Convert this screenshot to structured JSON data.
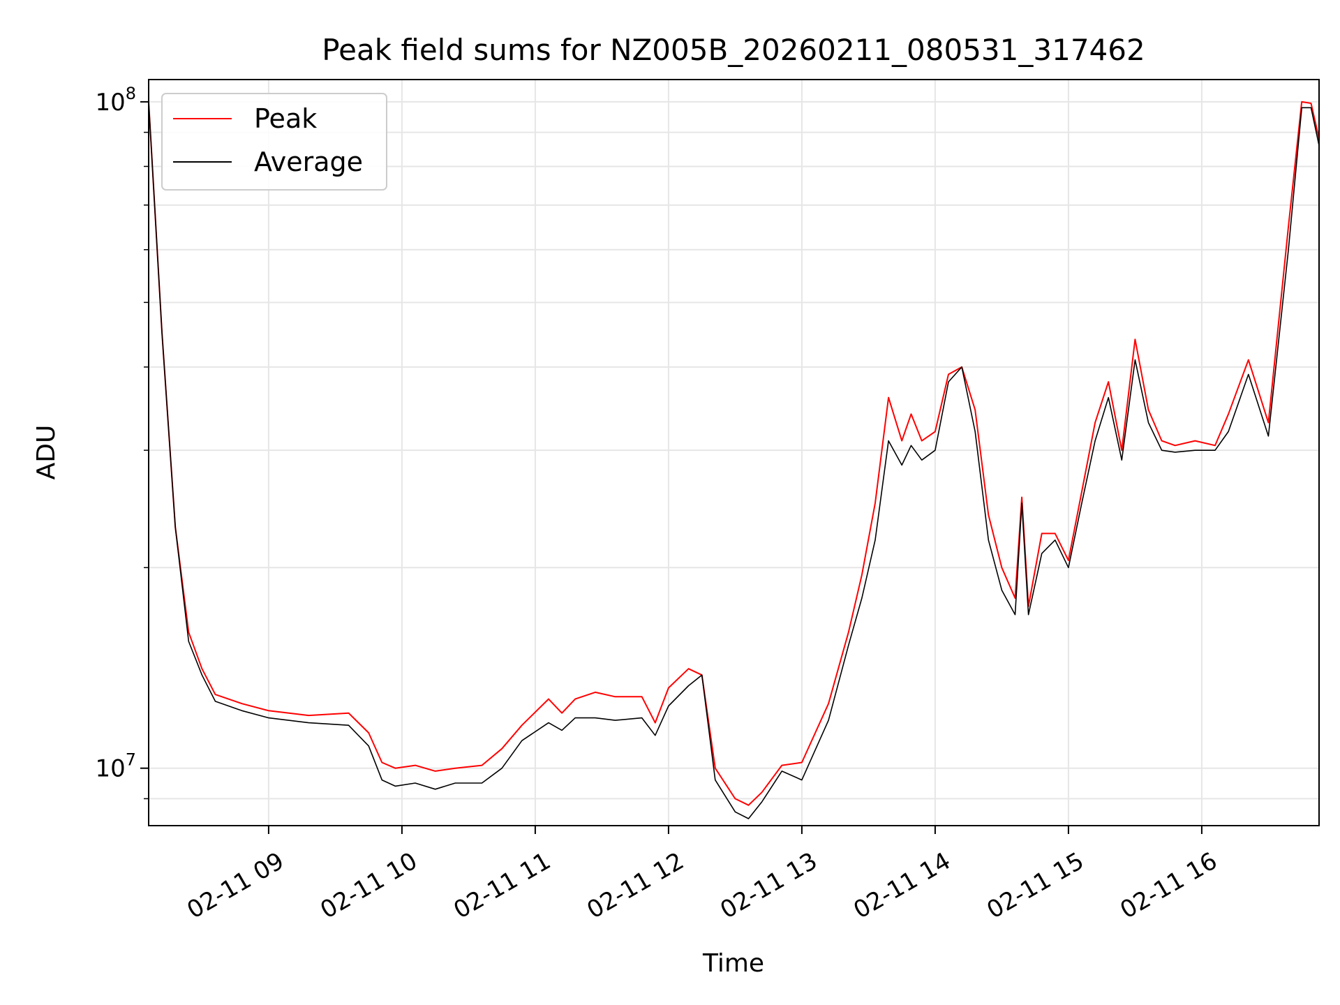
{
  "chart_data": {
    "type": "line",
    "title": "Peak field sums for NZ005B_20260211_080531_317462",
    "xlabel": "Time",
    "ylabel": "ADU",
    "yscale": "log",
    "ylim": [
      8200000,
      108000000
    ],
    "xlim_hours": [
      8.1,
      16.88
    ],
    "grid": true,
    "legend_position": "top-left",
    "x_ticks": [
      {
        "hour": 9,
        "label": "02-11 09"
      },
      {
        "hour": 10,
        "label": "02-11 10"
      },
      {
        "hour": 11,
        "label": "02-11 11"
      },
      {
        "hour": 12,
        "label": "02-11 12"
      },
      {
        "hour": 13,
        "label": "02-11 13"
      },
      {
        "hour": 14,
        "label": "02-11 14"
      },
      {
        "hour": 15,
        "label": "02-11 15"
      },
      {
        "hour": 16,
        "label": "02-11 16"
      }
    ],
    "y_ticks": [
      {
        "value": 10000000,
        "base": "10",
        "exp": "7"
      },
      {
        "value": 100000000,
        "base": "10",
        "exp": "8"
      }
    ],
    "series": [
      {
        "name": "Peak",
        "color": "#ff0000",
        "x": [
          8.1,
          8.2,
          8.3,
          8.4,
          8.5,
          8.6,
          8.8,
          9.0,
          9.3,
          9.6,
          9.75,
          9.85,
          9.95,
          10.1,
          10.25,
          10.4,
          10.6,
          10.75,
          10.9,
          11.1,
          11.2,
          11.3,
          11.45,
          11.6,
          11.8,
          11.9,
          12.0,
          12.15,
          12.25,
          12.35,
          12.5,
          12.6,
          12.7,
          12.85,
          13.0,
          13.2,
          13.35,
          13.45,
          13.55,
          13.65,
          13.75,
          13.82,
          13.9,
          14.0,
          14.1,
          14.2,
          14.3,
          14.4,
          14.5,
          14.6,
          14.65,
          14.7,
          14.8,
          14.9,
          15.0,
          15.1,
          15.2,
          15.3,
          15.4,
          15.5,
          15.6,
          15.7,
          15.8,
          15.95,
          16.1,
          16.2,
          16.35,
          16.5,
          16.65,
          16.75,
          16.82,
          16.88
        ],
        "values": [
          100000000,
          45000000,
          23000000,
          16000000,
          14100000,
          12900000,
          12500000,
          12200000,
          12000000,
          12100000,
          11300000,
          10200000,
          10000000,
          10100000,
          9900000,
          10000000,
          10100000,
          10700000,
          11600000,
          12700000,
          12100000,
          12700000,
          13000000,
          12800000,
          12800000,
          11700000,
          13200000,
          14100000,
          13800000,
          10000000,
          9000000,
          8800000,
          9200000,
          10100000,
          10200000,
          12500000,
          16000000,
          19500000,
          25000000,
          36000000,
          31000000,
          34000000,
          31000000,
          32000000,
          39000000,
          40000000,
          34500000,
          24000000,
          20000000,
          18000000,
          25500000,
          17500000,
          22500000,
          22500000,
          20500000,
          26000000,
          33000000,
          38000000,
          30000000,
          44000000,
          34500000,
          31000000,
          30500000,
          31000000,
          30500000,
          34000000,
          41000000,
          33000000,
          65000000,
          100000000,
          99500000,
          88000000
        ]
      },
      {
        "name": "Average",
        "color": "#000000",
        "x": [
          8.1,
          8.2,
          8.3,
          8.4,
          8.5,
          8.6,
          8.8,
          9.0,
          9.3,
          9.6,
          9.75,
          9.85,
          9.95,
          10.1,
          10.25,
          10.4,
          10.6,
          10.75,
          10.9,
          11.1,
          11.2,
          11.3,
          11.45,
          11.6,
          11.8,
          11.9,
          12.0,
          12.15,
          12.25,
          12.35,
          12.5,
          12.6,
          12.7,
          12.85,
          13.0,
          13.2,
          13.35,
          13.45,
          13.55,
          13.65,
          13.75,
          13.82,
          13.9,
          14.0,
          14.1,
          14.2,
          14.3,
          14.4,
          14.5,
          14.6,
          14.65,
          14.7,
          14.8,
          14.9,
          15.0,
          15.1,
          15.2,
          15.3,
          15.4,
          15.5,
          15.6,
          15.7,
          15.8,
          15.95,
          16.1,
          16.2,
          16.35,
          16.5,
          16.65,
          16.75,
          16.82,
          16.88
        ],
        "values": [
          100000000,
          45000000,
          23000000,
          15500000,
          13800000,
          12600000,
          12200000,
          11900000,
          11700000,
          11600000,
          10800000,
          9600000,
          9400000,
          9500000,
          9300000,
          9500000,
          9500000,
          10000000,
          11000000,
          11700000,
          11400000,
          11900000,
          11900000,
          11800000,
          11900000,
          11200000,
          12400000,
          13300000,
          13800000,
          9600000,
          8600000,
          8400000,
          8900000,
          9900000,
          9600000,
          11800000,
          15300000,
          18000000,
          22000000,
          31000000,
          28500000,
          30500000,
          29000000,
          30000000,
          38000000,
          40000000,
          32000000,
          22000000,
          18500000,
          17000000,
          25000000,
          17000000,
          21000000,
          22000000,
          20000000,
          25000000,
          31000000,
          36000000,
          29000000,
          41000000,
          33000000,
          30000000,
          29800000,
          30000000,
          30000000,
          32000000,
          39000000,
          31500000,
          60000000,
          98000000,
          98000000,
          86000000
        ]
      }
    ]
  }
}
